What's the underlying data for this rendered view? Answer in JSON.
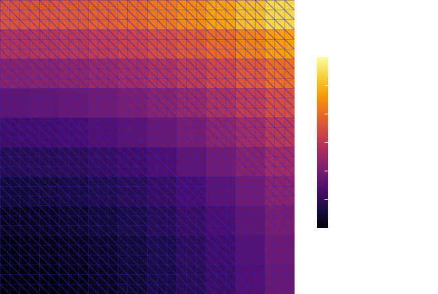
{
  "chart_data": {
    "type": "heatmap",
    "rows": [
      [
        2.81,
        2.83,
        2.87,
        2.93,
        3.01,
        3.11,
        3.23,
        3.37,
        3.53,
        3.71
      ],
      [
        2.45,
        2.47,
        2.51,
        2.57,
        2.65,
        2.75,
        2.87,
        3.01,
        3.17,
        3.35
      ],
      [
        2.13,
        2.15,
        2.19,
        2.25,
        2.33,
        2.43,
        2.55,
        2.69,
        2.85,
        3.03
      ],
      [
        1.85,
        1.87,
        1.91,
        1.97,
        2.05,
        2.15,
        2.27,
        2.41,
        2.57,
        2.75
      ],
      [
        1.61,
        1.63,
        1.67,
        1.73,
        1.81,
        1.91,
        2.03,
        2.17,
        2.33,
        2.51
      ],
      [
        1.41,
        1.43,
        1.47,
        1.53,
        1.61,
        1.71,
        1.83,
        1.97,
        2.13,
        2.31
      ],
      [
        1.25,
        1.27,
        1.31,
        1.37,
        1.45,
        1.55,
        1.67,
        1.81,
        1.97,
        2.15
      ],
      [
        1.13,
        1.15,
        1.19,
        1.25,
        1.33,
        1.43,
        1.55,
        1.69,
        1.85,
        2.03
      ],
      [
        1.05,
        1.07,
        1.11,
        1.17,
        1.25,
        1.35,
        1.47,
        1.61,
        1.77,
        1.95
      ],
      [
        1.01,
        1.03,
        1.07,
        1.13,
        1.21,
        1.31,
        1.43,
        1.57,
        1.73,
        1.91
      ]
    ],
    "zlim": [
      1,
      4
    ],
    "zticks": [
      1.5,
      2,
      2.5,
      3,
      3.5
    ],
    "colormap": [
      "#000004",
      "#1b0c41",
      "#4a0c6b",
      "#781c6d",
      "#a52c60",
      "#cf4446",
      "#ed6925",
      "#fb9b06",
      "#f7d13d",
      "#fcffa4"
    ]
  }
}
